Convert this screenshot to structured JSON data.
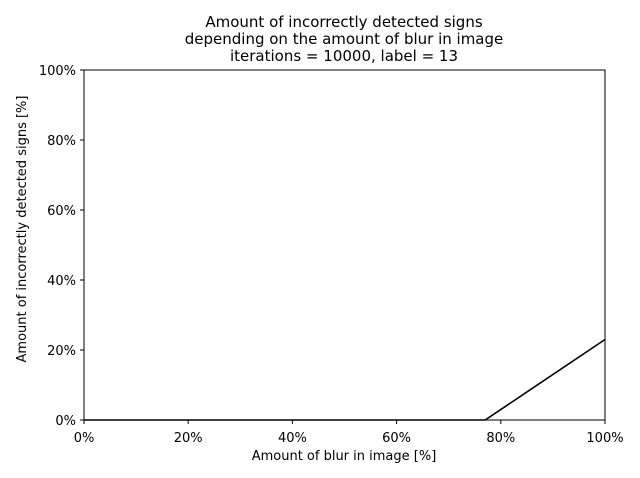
{
  "chart_data": {
    "type": "line",
    "title_lines": [
      "Amount of incorrectly detected signs",
      "depending on the amount of blur in image",
      "iterations = 10000, label = 13"
    ],
    "xlabel": "Amount of blur in image [%]",
    "ylabel": "Amount of incorrectly detected signs [%]",
    "xlim": [
      0,
      100
    ],
    "ylim": [
      0,
      100
    ],
    "x_ticks": [
      0,
      20,
      40,
      60,
      80,
      100
    ],
    "y_ticks": [
      0,
      20,
      40,
      60,
      80,
      100
    ],
    "x_tick_labels": [
      "0%",
      "20%",
      "40%",
      "60%",
      "80%",
      "100%"
    ],
    "y_tick_labels": [
      "0%",
      "20%",
      "40%",
      "60%",
      "80%",
      "100%"
    ],
    "grid": false,
    "series": [
      {
        "color": "#000000",
        "x": [
          0,
          77,
          100
        ],
        "y": [
          0,
          0,
          23
        ]
      }
    ]
  }
}
